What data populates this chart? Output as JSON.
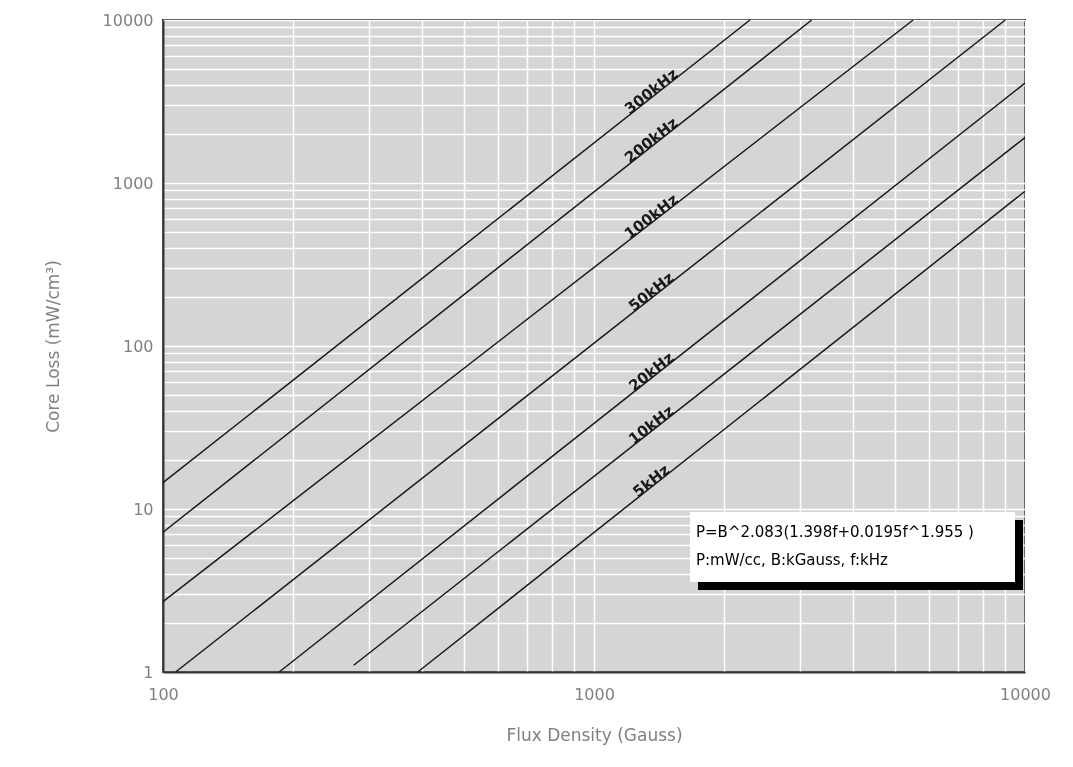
{
  "chart_data": {
    "type": "line",
    "xlabel": "Flux Density (Gauss)",
    "ylabel": "Core Loss (mW/cm³)",
    "log": "xy",
    "grid": true,
    "marker": "none",
    "line_style": "solid",
    "xlim": [
      100,
      10000
    ],
    "ylim": [
      1,
      10000
    ],
    "xticks": [
      100,
      {
        "value": 200,
        "label": null
      },
      {
        "value": 300,
        "label": null
      },
      {
        "value": 400,
        "label": null
      },
      {
        "value": 500,
        "label": null
      },
      {
        "value": 600,
        "label": null
      },
      {
        "value": 700,
        "label": null
      },
      {
        "value": 800,
        "label": null
      },
      {
        "value": 900,
        "label": null
      },
      1000,
      {
        "value": 2000,
        "label": null
      },
      {
        "value": 3000,
        "label": null
      },
      {
        "value": 4000,
        "label": null
      },
      {
        "value": 5000,
        "label": null
      },
      {
        "value": 6000,
        "label": null
      },
      {
        "value": 7000,
        "label": null
      },
      {
        "value": 8000,
        "label": null
      },
      {
        "value": 9000,
        "label": null
      },
      10000
    ],
    "yticks": [
      1,
      {
        "value": 2,
        "label": null
      },
      {
        "value": 3,
        "label": null
      },
      {
        "value": 4,
        "label": null
      },
      {
        "value": 5,
        "label": null
      },
      {
        "value": 6,
        "label": null
      },
      {
        "value": 7,
        "label": null
      },
      {
        "value": 8,
        "label": null
      },
      {
        "value": 9,
        "label": null
      },
      10,
      {
        "value": 20,
        "label": null
      },
      {
        "value": 30,
        "label": null
      },
      {
        "value": 40,
        "label": null
      },
      {
        "value": 50,
        "label": null
      },
      {
        "value": 60,
        "label": null
      },
      {
        "value": 70,
        "label": null
      },
      {
        "value": 80,
        "label": null
      },
      {
        "value": 90,
        "label": null
      },
      100,
      {
        "value": 200,
        "label": null
      },
      {
        "value": 300,
        "label": null
      },
      {
        "value": 400,
        "label": null
      },
      {
        "value": 500,
        "label": null
      },
      {
        "value": 600,
        "label": null
      },
      {
        "value": 700,
        "label": null
      },
      {
        "value": 800,
        "label": null
      },
      {
        "value": 900,
        "label": null
      },
      1000,
      {
        "value": 2000,
        "label": null
      },
      {
        "value": 3000,
        "label": null
      },
      {
        "value": 4000,
        "label": null
      },
      {
        "value": 5000,
        "label": null
      },
      {
        "value": 6000,
        "label": null
      },
      {
        "value": 7000,
        "label": null
      },
      {
        "value": 8000,
        "label": null
      },
      {
        "value": 9000,
        "label": null
      },
      10000
    ],
    "series": [
      {
        "name": "300kHz",
        "color": "#1a1a1a",
        "x": [
          100,
          2300
        ],
        "values": [
          14.5,
          10000
        ]
      },
      {
        "name": "200kHz",
        "color": "#1a1a1a",
        "x": [
          100,
          3200
        ],
        "values": [
          7.2,
          10000
        ]
      },
      {
        "name": "100kHz",
        "color": "#1a1a1a",
        "x": [
          100,
          5500
        ],
        "values": [
          2.7,
          10000
        ]
      },
      {
        "name": "50kHz",
        "color": "#1a1a1a",
        "x": [
          107,
          9000
        ],
        "values": [
          1,
          10000
        ]
      },
      {
        "name": "20kHz",
        "color": "#1a1a1a",
        "x": [
          186,
          10000
        ],
        "values": [
          1,
          4100
        ]
      },
      {
        "name": "10kHz",
        "color": "#1a1a1a",
        "x": [
          277,
          10000
        ],
        "values": [
          1.1,
          1900
        ]
      },
      {
        "name": "5kHz",
        "color": "#1a1a1a",
        "x": [
          390,
          10000
        ],
        "values": [
          1,
          890
        ]
      }
    ],
    "annotations": [
      "P=B^2.083(1.398f+0.0195f^1.955 )",
      "P:mW/cc, B:kGauss, f:kHz"
    ]
  }
}
